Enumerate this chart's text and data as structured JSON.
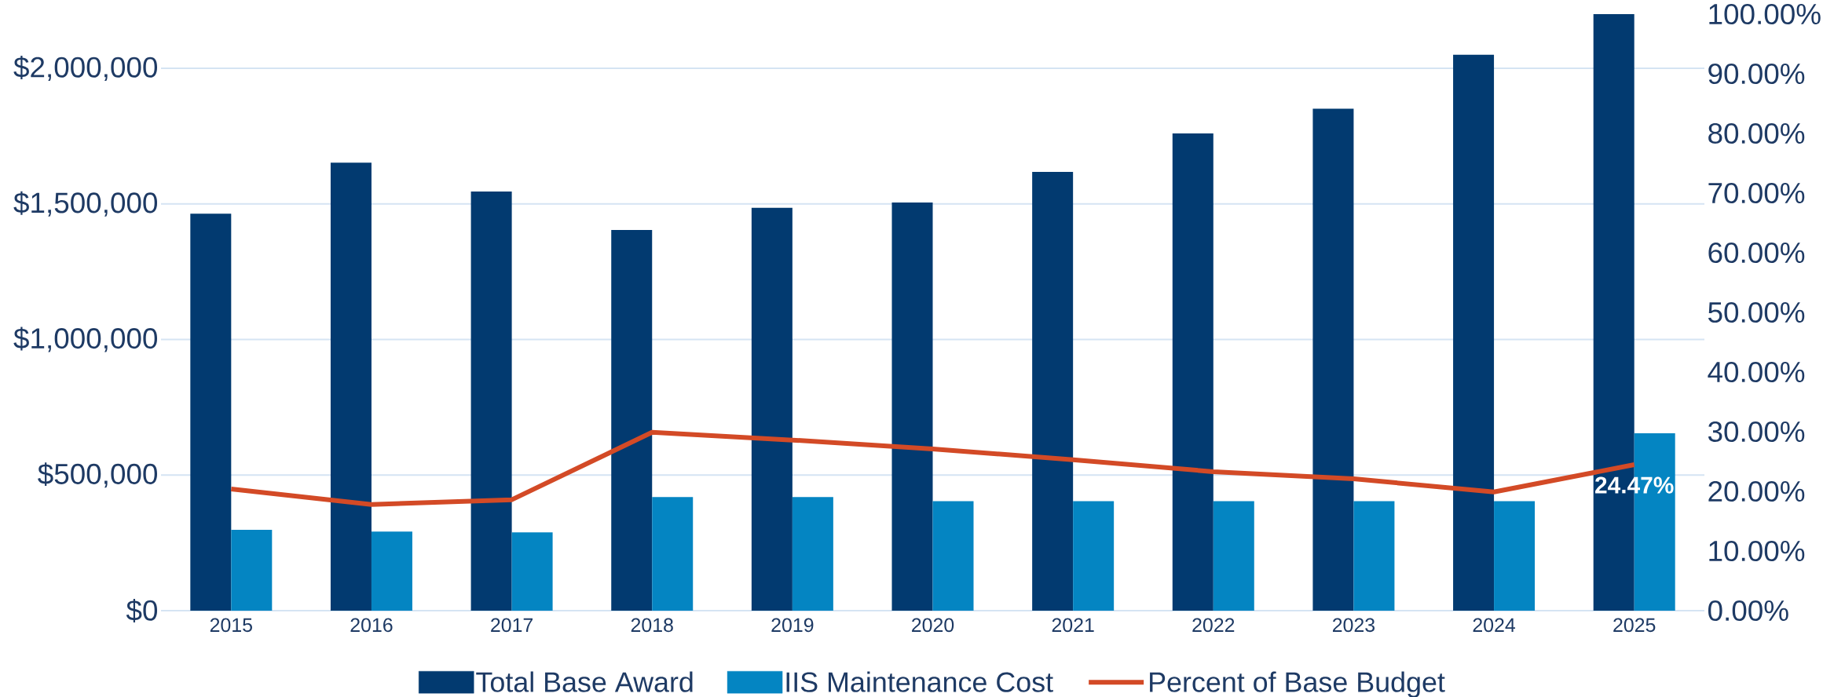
{
  "chart_data": {
    "type": "bar",
    "categories": [
      "2015",
      "2016",
      "2017",
      "2018",
      "2019",
      "2020",
      "2021",
      "2022",
      "2023",
      "2024",
      "2025"
    ],
    "series": [
      {
        "name": "Total Base Award",
        "color": "#023a70",
        "values": [
          1464000,
          1652000,
          1546000,
          1404000,
          1486000,
          1505000,
          1618000,
          1760000,
          1851000,
          2050000,
          2200000
        ]
      },
      {
        "name": "IIS Maintenance Cost",
        "color": "#0485c2",
        "values": [
          298000,
          292000,
          289000,
          419000,
          419000,
          404000,
          404000,
          404000,
          404000,
          404000,
          654000
        ]
      },
      {
        "name": "Percent of Base Budget",
        "type": "line",
        "axis": "y2",
        "color": "#d34a26",
        "values": [
          20.4,
          17.8,
          18.6,
          29.9,
          28.6,
          27.1,
          25.3,
          23.3,
          22.1,
          19.9,
          24.47
        ],
        "value_labels": [
          null,
          null,
          null,
          null,
          null,
          null,
          null,
          null,
          null,
          null,
          "24.47%"
        ]
      }
    ],
    "ylim": [
      0,
      2200000
    ],
    "yticks": [
      {
        "value": 0,
        "label": "$0"
      },
      {
        "value": 500000,
        "label": "$500,000"
      },
      {
        "value": 1000000,
        "label": "$1,000,000"
      },
      {
        "value": 1500000,
        "label": "$1,500,000"
      },
      {
        "value": 2000000,
        "label": "$2,000,000"
      }
    ],
    "y2lim": [
      0,
      100
    ],
    "y2ticks": [
      {
        "value": 0,
        "label": "0.00%"
      },
      {
        "value": 10,
        "label": "10.00%"
      },
      {
        "value": 20,
        "label": "20.00%"
      },
      {
        "value": 30,
        "label": "30.00%"
      },
      {
        "value": 40,
        "label": "40.00%"
      },
      {
        "value": 50,
        "label": "50.00%"
      },
      {
        "value": 60,
        "label": "60.00%"
      },
      {
        "value": 70,
        "label": "70.00%"
      },
      {
        "value": 80,
        "label": "80.00%"
      },
      {
        "value": 90,
        "label": "90.00%"
      },
      {
        "value": 100,
        "label": "100.00%"
      }
    ],
    "grid": "y",
    "legend": "bottom"
  }
}
